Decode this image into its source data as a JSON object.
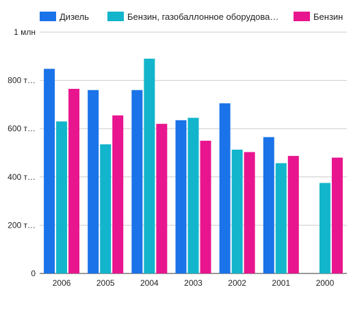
{
  "chart_data": {
    "type": "bar",
    "title": "",
    "xlabel": "",
    "ylabel": "",
    "categories": [
      "2006",
      "2005",
      "2004",
      "2003",
      "2002",
      "2001",
      "2000"
    ],
    "ylim": [
      0,
      1000000
    ],
    "y_ticks": [
      {
        "value": 0,
        "label": "0"
      },
      {
        "value": 200000,
        "label": "200 т…"
      },
      {
        "value": 400000,
        "label": "400 т…"
      },
      {
        "value": 600000,
        "label": "600 т…"
      },
      {
        "value": 800000,
        "label": "800 т…"
      },
      {
        "value": 1000000,
        "label": "1 млн"
      }
    ],
    "grid": true,
    "legend_position": "top",
    "series": [
      {
        "name": "Дизель",
        "color": "#1a73e8",
        "values": [
          848000,
          760000,
          760000,
          635000,
          705000,
          565000,
          null
        ]
      },
      {
        "name": "Бензин, газобаллонное оборудова…",
        "color": "#12b5cb",
        "values": [
          630000,
          535000,
          890000,
          645000,
          513000,
          457000,
          375000
        ]
      },
      {
        "name": "Бензин",
        "color": "#e8158f",
        "values": [
          765000,
          655000,
          620000,
          550000,
          503000,
          487000,
          480000
        ]
      }
    ]
  }
}
